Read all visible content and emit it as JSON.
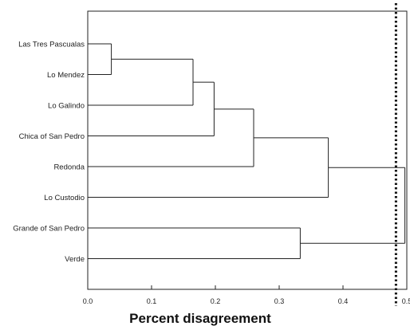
{
  "chart_data": {
    "type": "dendrogram",
    "xlabel": "Percent disagreement",
    "xlim": [
      0.0,
      0.5
    ],
    "ticks": [
      "0.0",
      "0.1",
      "0.2",
      "0.3",
      "0.4",
      "0.5"
    ],
    "tick_values": [
      0.0,
      0.1,
      0.2,
      0.3,
      0.4,
      0.5
    ],
    "leaves": [
      "Las Tres Pascualas",
      "Lo Mendez",
      "Lo Galindo",
      "Chica of San Pedro",
      "Redonda",
      "Lo Custodio",
      "Grande of San Pedro",
      "Verde"
    ],
    "merges": [
      {
        "left": "Las Tres Pascualas",
        "right": "Lo Mendez",
        "height": 0.037
      },
      {
        "left": "merge-1",
        "right": "Lo Galindo",
        "height": 0.165
      },
      {
        "left": "merge-2",
        "right": "Chica of San Pedro",
        "height": 0.198
      },
      {
        "left": "merge-3",
        "right": "Redonda",
        "height": 0.26
      },
      {
        "left": "merge-4",
        "right": "Lo Custodio",
        "height": 0.377
      },
      {
        "left": "Grande of San Pedro",
        "right": "Verde",
        "height": 0.333
      },
      {
        "left": "merge-5",
        "right": "merge-6",
        "height": 0.497
      }
    ],
    "cutoff": 0.483,
    "grid": false
  }
}
